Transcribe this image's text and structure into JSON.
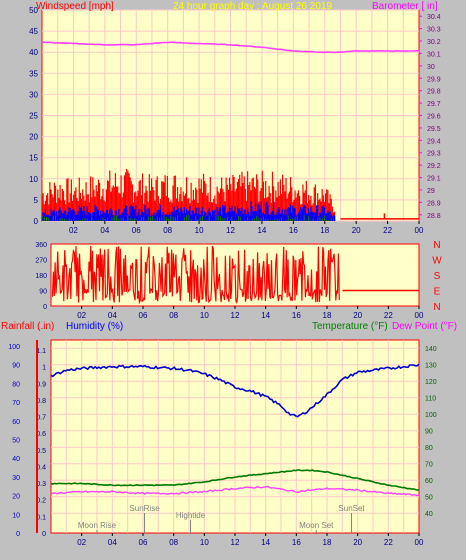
{
  "chart_data": [
    {
      "type": "line",
      "panel": "wind-barometer",
      "title": "24 hour graph day : August 26 2019",
      "ylabel_left": "Windspeed [mph]",
      "ylabel_right": "Barometer [ in]",
      "left_ylim": [
        0,
        50
      ],
      "left_ticks": [
        "0",
        "5",
        "10",
        "15",
        "20",
        "25",
        "30",
        "35",
        "40",
        "45",
        "50"
      ],
      "right_ylim": [
        28.75,
        30.45
      ],
      "right_ticks": [
        "28.8",
        "28.9",
        "29",
        "29.1",
        "29.2",
        "29.3",
        "29.4",
        "29.5",
        "29.6",
        "29.7",
        "29.8",
        "29.9",
        "30",
        "30.1",
        "30.2",
        "30.3",
        "30.4"
      ],
      "x_ticks": [
        "02",
        "04",
        "06",
        "08",
        "10",
        "12",
        "14",
        "16",
        "18",
        "20",
        "22",
        "00"
      ],
      "grid": true,
      "series": [
        {
          "name": "Barometer",
          "color": "#ff40ff",
          "axis": "right",
          "x": [
            0,
            2,
            4,
            6,
            8,
            10,
            12,
            14,
            16,
            18,
            19,
            20,
            22,
            24
          ],
          "y": [
            30.19,
            30.18,
            30.17,
            30.17,
            30.19,
            30.18,
            30.17,
            30.15,
            30.12,
            30.11,
            30.11,
            30.12,
            30.12,
            30.12
          ]
        },
        {
          "name": "Gust",
          "color": "#ff0000",
          "axis": "left",
          "x": [
            0,
            1,
            2,
            3,
            4,
            5,
            6,
            7,
            8,
            9,
            10,
            11,
            12,
            13,
            14,
            15,
            16,
            17,
            18,
            18.7,
            19,
            24
          ],
          "y": [
            9,
            11,
            10,
            11,
            12,
            13,
            12,
            11,
            12,
            12,
            12,
            11,
            11,
            12,
            12,
            12,
            11,
            10,
            9,
            4,
            0.5,
            0.5
          ]
        },
        {
          "name": "Wind",
          "color": "#0000ff",
          "axis": "left",
          "x": [
            0,
            2,
            4,
            6,
            8,
            10,
            12,
            14,
            16,
            18,
            18.7,
            19,
            24
          ],
          "y": [
            2,
            3,
            3,
            3,
            3,
            3,
            3,
            4,
            3,
            3,
            1,
            0,
            0
          ]
        }
      ]
    },
    {
      "type": "line",
      "panel": "wind-direction",
      "ylim": [
        0,
        360
      ],
      "left_ticks": [
        "0",
        "90",
        "180",
        "270",
        "360"
      ],
      "right_labels": [
        "N",
        "W",
        "S",
        "E",
        "N"
      ],
      "x_ticks": [
        "02",
        "04",
        "06",
        "08",
        "10",
        "12",
        "14",
        "16",
        "18",
        "20",
        "22",
        "00"
      ],
      "series": [
        {
          "name": "Direction",
          "color": "#ff0000",
          "x": [
            0,
            19,
            24
          ],
          "y": [
            90,
            90,
            90
          ]
        }
      ]
    },
    {
      "type": "line",
      "panel": "temp-humidity",
      "ylabel_left1": "Rainfall (.in)",
      "ylabel_left2": "Humidity (%)",
      "ylabel_right1": "Temperature (°F)",
      "ylabel_right2": "Dew Point (°F)",
      "rain_ticks": [
        "0",
        "0.1",
        "0.2",
        "0.3",
        "0.4",
        "0.5",
        "0.6",
        "0.7",
        "0.8",
        "0.9",
        "1",
        "1.1"
      ],
      "humidity_ticks": [
        "0",
        "10",
        "20",
        "30",
        "40",
        "50",
        "60",
        "70",
        "80",
        "90",
        "100"
      ],
      "temp_ylim": [
        28,
        145
      ],
      "temp_ticks": [
        "40",
        "50",
        "60",
        "70",
        "80",
        "90",
        "100",
        "110",
        "120",
        "130",
        "140"
      ],
      "x_ticks": [
        "02",
        "04",
        "06",
        "08",
        "10",
        "12",
        "14",
        "16",
        "18",
        "20",
        "22",
        "00"
      ],
      "grid": true,
      "series": [
        {
          "name": "Humidity",
          "color": "#0000c8",
          "axis": "humidity",
          "x": [
            0,
            1,
            2,
            4,
            6,
            8,
            9,
            10,
            11,
            12,
            13,
            14,
            15,
            15.5,
            16,
            16.5,
            17,
            18,
            19,
            20,
            21,
            22,
            23,
            24
          ],
          "y": [
            84,
            87,
            88,
            89,
            89,
            88,
            87,
            85,
            82,
            78,
            76,
            73,
            68,
            64,
            62,
            64,
            67,
            74,
            82,
            86,
            87,
            88,
            89,
            90
          ]
        },
        {
          "name": "Temperature",
          "color": "#007800",
          "axis": "temp",
          "x": [
            0,
            2,
            4,
            6,
            8,
            10,
            12,
            14,
            16,
            17,
            18,
            20,
            22,
            24
          ],
          "y": [
            58,
            58,
            57,
            57,
            57,
            59,
            62,
            64,
            66,
            66,
            65,
            61,
            57,
            54
          ]
        },
        {
          "name": "Dew Point",
          "color": "#ff40ff",
          "axis": "temp",
          "x": [
            0,
            2,
            4,
            6,
            8,
            10,
            12,
            14,
            16,
            18,
            20,
            22,
            24
          ],
          "y": [
            52,
            53,
            53,
            52,
            52,
            53,
            55,
            56,
            53,
            55,
            54,
            52,
            51
          ]
        }
      ],
      "annotations": [
        {
          "text": "Moon Rise",
          "x": 3.0,
          "row": "bottom"
        },
        {
          "text": "SunRise",
          "x": 6.1,
          "row": "top"
        },
        {
          "text": "Hightide",
          "x": 9.1,
          "row": "middle"
        },
        {
          "text": "Moon Set",
          "x": 17.3,
          "row": "bottom"
        },
        {
          "text": "SunSet",
          "x": 19.6,
          "row": "top"
        }
      ]
    }
  ],
  "colors": {
    "plot_bg": "#ffffc8",
    "frame": "#ff0000",
    "grid": "#ffc8c8",
    "windspeed_label": "#ff0000",
    "barometer_label": "#ff00ff",
    "title_label": "#ffff00",
    "temperature_label": "#008000",
    "dewpoint_label": "#ff00ff",
    "humidity_label": "#0000ff",
    "rainfall_label": "#ff0000"
  }
}
